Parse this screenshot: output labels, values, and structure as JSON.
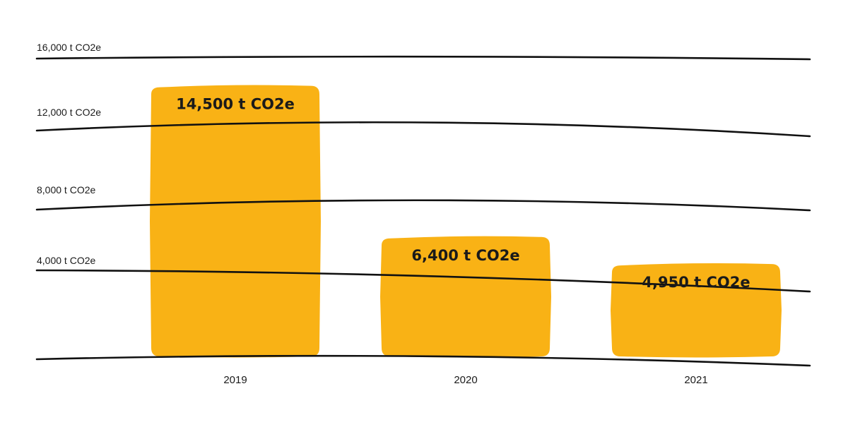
{
  "chart_data": {
    "type": "bar",
    "categories": [
      "2019",
      "2020",
      "2021"
    ],
    "values": [
      14500,
      6400,
      4950
    ],
    "data_labels": [
      "14,500 t CO2e",
      "6,400 t CO2e",
      "4,950 t CO2e"
    ],
    "title": "",
    "xlabel": "",
    "ylabel": "",
    "ylim": [
      0,
      16000
    ],
    "yticks": [
      {
        "value": 4000,
        "label": "4,000 t CO2e"
      },
      {
        "value": 8000,
        "label": "8,000 t CO2e"
      },
      {
        "value": 12000,
        "label": "12,000 t CO2e"
      },
      {
        "value": 16000,
        "label": "16,000 t CO2e"
      }
    ],
    "grid": true,
    "legend": "none",
    "colors": {
      "bar": "#F9B215",
      "gridline": "#111111",
      "text": "#1a1a1a",
      "background": "#ffffff"
    }
  }
}
